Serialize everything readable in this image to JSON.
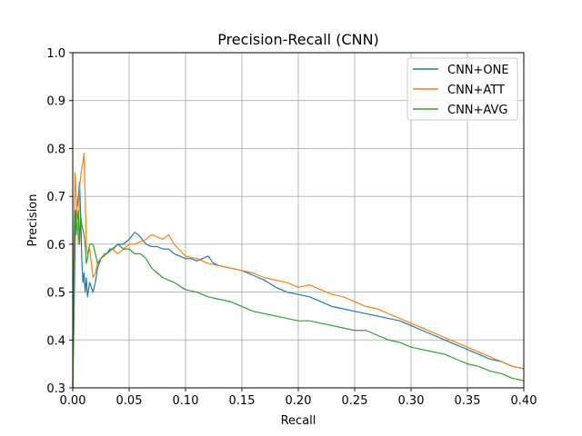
{
  "chart_data": {
    "type": "line",
    "title": "Precision-Recall (CNN)",
    "xlabel": "Recall",
    "ylabel": "Precision",
    "xlim": [
      0.0,
      0.4
    ],
    "ylim": [
      0.3,
      1.0
    ],
    "xticks": [
      "0.00",
      "0.05",
      "0.10",
      "0.15",
      "0.20",
      "0.25",
      "0.30",
      "0.35",
      "0.40"
    ],
    "yticks": [
      "0.3",
      "0.4",
      "0.5",
      "0.6",
      "0.7",
      "0.8",
      "0.9",
      "1.0"
    ],
    "grid": true,
    "legend_position": "top-right",
    "series": [
      {
        "name": "CNN+ONE",
        "color": "#1f77b4",
        "x": [
          0.0,
          0.001,
          0.002,
          0.003,
          0.004,
          0.005,
          0.006,
          0.007,
          0.008,
          0.009,
          0.01,
          0.011,
          0.012,
          0.013,
          0.015,
          0.018,
          0.02,
          0.022,
          0.025,
          0.028,
          0.03,
          0.033,
          0.036,
          0.04,
          0.045,
          0.05,
          0.055,
          0.058,
          0.06,
          0.065,
          0.07,
          0.075,
          0.08,
          0.085,
          0.09,
          0.1,
          0.105,
          0.11,
          0.115,
          0.12,
          0.125,
          0.13,
          0.14,
          0.15,
          0.16,
          0.17,
          0.18,
          0.19,
          0.2,
          0.21,
          0.22,
          0.23,
          0.24,
          0.25,
          0.26,
          0.27,
          0.28,
          0.29,
          0.3,
          0.31,
          0.32,
          0.33,
          0.34,
          0.35,
          0.36,
          0.37,
          0.38,
          0.39,
          0.4
        ],
        "y": [
          0.3,
          0.43,
          0.6,
          0.67,
          0.68,
          0.7,
          0.73,
          0.66,
          0.57,
          0.52,
          0.54,
          0.5,
          0.53,
          0.49,
          0.52,
          0.5,
          0.52,
          0.55,
          0.57,
          0.58,
          0.58,
          0.59,
          0.59,
          0.6,
          0.6,
          0.61,
          0.625,
          0.62,
          0.615,
          0.6,
          0.595,
          0.595,
          0.59,
          0.59,
          0.58,
          0.57,
          0.57,
          0.565,
          0.57,
          0.575,
          0.56,
          0.555,
          0.55,
          0.545,
          0.535,
          0.525,
          0.51,
          0.5,
          0.495,
          0.49,
          0.48,
          0.47,
          0.465,
          0.46,
          0.455,
          0.45,
          0.445,
          0.44,
          0.43,
          0.42,
          0.41,
          0.4,
          0.39,
          0.38,
          0.37,
          0.36,
          0.355,
          0.345,
          0.34
        ]
      },
      {
        "name": "CNN+ATT",
        "color": "#ff7f0e",
        "x": [
          0.0,
          0.001,
          0.002,
          0.003,
          0.004,
          0.005,
          0.006,
          0.007,
          0.008,
          0.009,
          0.01,
          0.011,
          0.012,
          0.013,
          0.015,
          0.018,
          0.02,
          0.022,
          0.025,
          0.028,
          0.03,
          0.035,
          0.04,
          0.045,
          0.05,
          0.055,
          0.06,
          0.065,
          0.07,
          0.075,
          0.08,
          0.085,
          0.09,
          0.1,
          0.11,
          0.12,
          0.13,
          0.14,
          0.15,
          0.16,
          0.17,
          0.18,
          0.19,
          0.2,
          0.21,
          0.22,
          0.23,
          0.24,
          0.25,
          0.26,
          0.27,
          0.28,
          0.29,
          0.3,
          0.31,
          0.32,
          0.33,
          0.34,
          0.35,
          0.36,
          0.37,
          0.38,
          0.39,
          0.4
        ],
        "y": [
          0.3,
          0.6,
          0.75,
          0.7,
          0.65,
          0.6,
          0.72,
          0.74,
          0.76,
          0.77,
          0.79,
          0.7,
          0.6,
          0.58,
          0.59,
          0.53,
          0.54,
          0.56,
          0.57,
          0.58,
          0.58,
          0.59,
          0.58,
          0.59,
          0.6,
          0.6,
          0.605,
          0.61,
          0.62,
          0.615,
          0.61,
          0.62,
          0.6,
          0.575,
          0.57,
          0.56,
          0.555,
          0.55,
          0.545,
          0.54,
          0.53,
          0.525,
          0.52,
          0.51,
          0.515,
          0.505,
          0.495,
          0.49,
          0.48,
          0.47,
          0.465,
          0.455,
          0.445,
          0.435,
          0.425,
          0.415,
          0.405,
          0.395,
          0.385,
          0.375,
          0.365,
          0.355,
          0.345,
          0.34
        ]
      },
      {
        "name": "CNN+AVG",
        "color": "#2ca02c",
        "x": [
          0.0,
          0.001,
          0.002,
          0.003,
          0.004,
          0.005,
          0.006,
          0.007,
          0.008,
          0.009,
          0.01,
          0.011,
          0.012,
          0.013,
          0.015,
          0.018,
          0.02,
          0.022,
          0.025,
          0.03,
          0.035,
          0.04,
          0.045,
          0.05,
          0.055,
          0.06,
          0.065,
          0.07,
          0.075,
          0.08,
          0.09,
          0.1,
          0.11,
          0.12,
          0.13,
          0.14,
          0.15,
          0.16,
          0.17,
          0.18,
          0.19,
          0.2,
          0.21,
          0.22,
          0.23,
          0.24,
          0.25,
          0.26,
          0.27,
          0.28,
          0.29,
          0.3,
          0.31,
          0.32,
          0.33,
          0.34,
          0.35,
          0.36,
          0.37,
          0.38,
          0.39,
          0.4
        ],
        "y": [
          0.3,
          0.55,
          0.67,
          0.62,
          0.65,
          0.67,
          0.6,
          0.66,
          0.64,
          0.63,
          0.62,
          0.6,
          0.56,
          0.57,
          0.6,
          0.6,
          0.58,
          0.56,
          0.57,
          0.58,
          0.59,
          0.6,
          0.59,
          0.59,
          0.58,
          0.58,
          0.57,
          0.55,
          0.54,
          0.53,
          0.52,
          0.505,
          0.5,
          0.49,
          0.485,
          0.48,
          0.47,
          0.46,
          0.455,
          0.45,
          0.445,
          0.44,
          0.44,
          0.435,
          0.43,
          0.425,
          0.42,
          0.42,
          0.41,
          0.4,
          0.395,
          0.385,
          0.38,
          0.375,
          0.37,
          0.36,
          0.35,
          0.345,
          0.335,
          0.33,
          0.32,
          0.315
        ]
      }
    ]
  }
}
